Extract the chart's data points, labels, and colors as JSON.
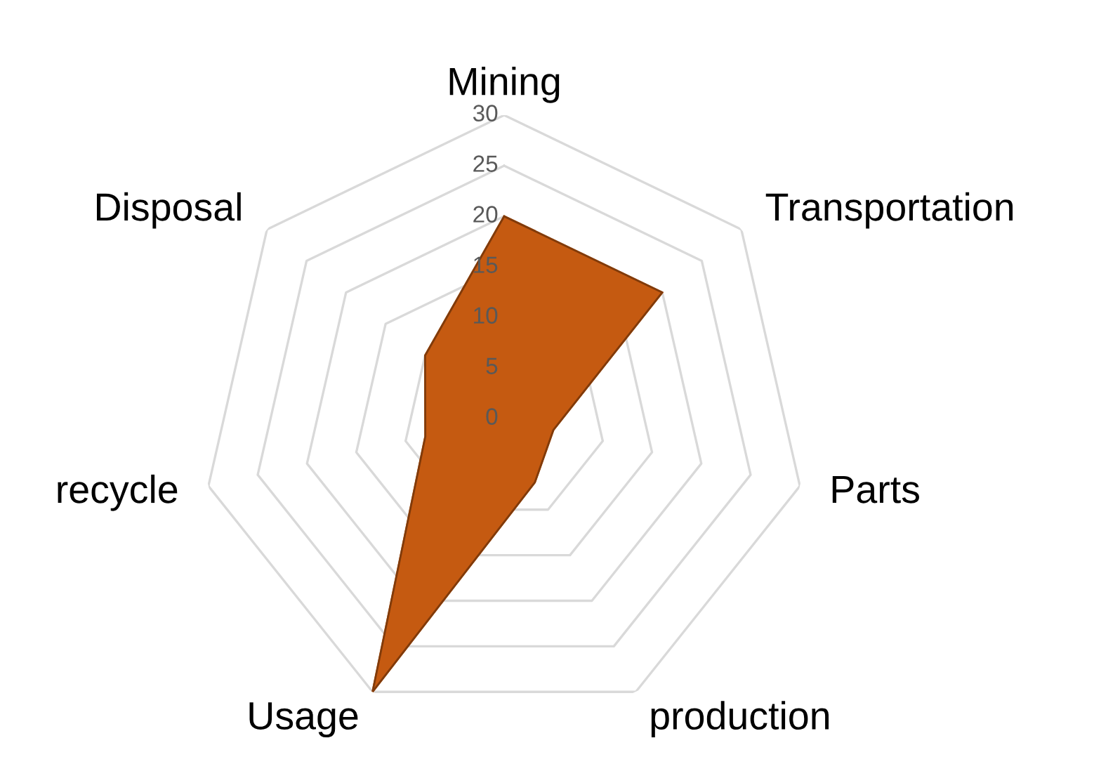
{
  "chart_data": {
    "type": "radar",
    "categories": [
      "Mining",
      "Transportation",
      "Parts",
      "production",
      "Usage",
      "recycle",
      "Disposal"
    ],
    "series": [
      {
        "color": "#c55a11",
        "values": [
          20,
          20,
          5,
          7,
          30,
          8,
          10
        ]
      }
    ],
    "ylim": [
      0,
      30
    ],
    "yticks": [
      0,
      5,
      10,
      15,
      20,
      25,
      30
    ],
    "grid": true
  }
}
